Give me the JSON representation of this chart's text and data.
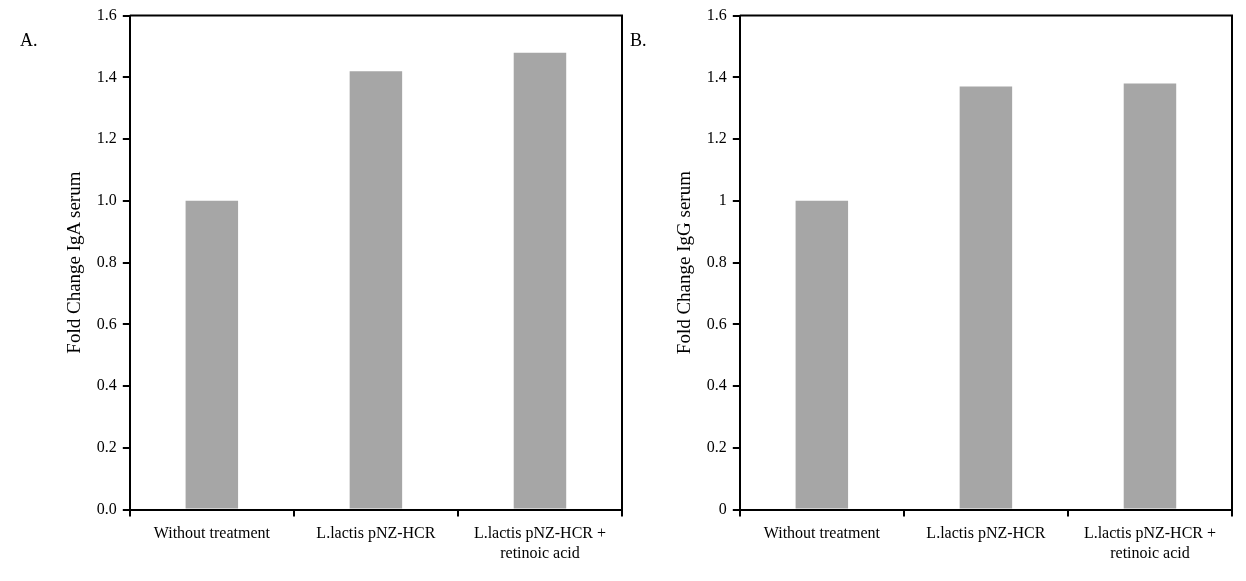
{
  "chart_data": [
    {
      "type": "bar",
      "title": "A.",
      "ylabel": "Fold Change IgA serum",
      "categories": [
        "Without treatment",
        "L.lactis pNZ-HCR",
        "L.lactis pNZ-HCR + retinoic acid"
      ],
      "values": [
        1.0,
        1.42,
        1.48
      ],
      "color": "#a6a6a6",
      "ylim": [
        0,
        1.6
      ],
      "yticks": [
        {
          "value": 0,
          "label": "0.0"
        },
        {
          "value": 0.2,
          "label": "0.2"
        },
        {
          "value": 0.4,
          "label": "0.4"
        },
        {
          "value": 0.6,
          "label": "0.6"
        },
        {
          "value": 0.8,
          "label": "0.8"
        },
        {
          "value": 1,
          "label": "1.0"
        },
        {
          "value": 1.2,
          "label": "1.2"
        },
        {
          "value": 1.4,
          "label": "1.4"
        },
        {
          "value": 1.6,
          "label": "1.6"
        }
      ],
      "grid": false,
      "legend": false
    },
    {
      "type": "bar",
      "title": "B.",
      "ylabel": "Fold Change IgG serum",
      "categories": [
        "Without treatment",
        "L.lactis pNZ-HCR",
        "L.lactis pNZ-HCR + retinoic acid"
      ],
      "values": [
        1.0,
        1.37,
        1.38
      ],
      "color": "#a6a6a6",
      "ylim": [
        0,
        1.6
      ],
      "yticks": [
        0,
        0.2,
        0.4,
        0.6,
        0.8,
        1,
        1.2,
        1.4,
        1.6
      ],
      "grid": false,
      "legend": false
    }
  ]
}
